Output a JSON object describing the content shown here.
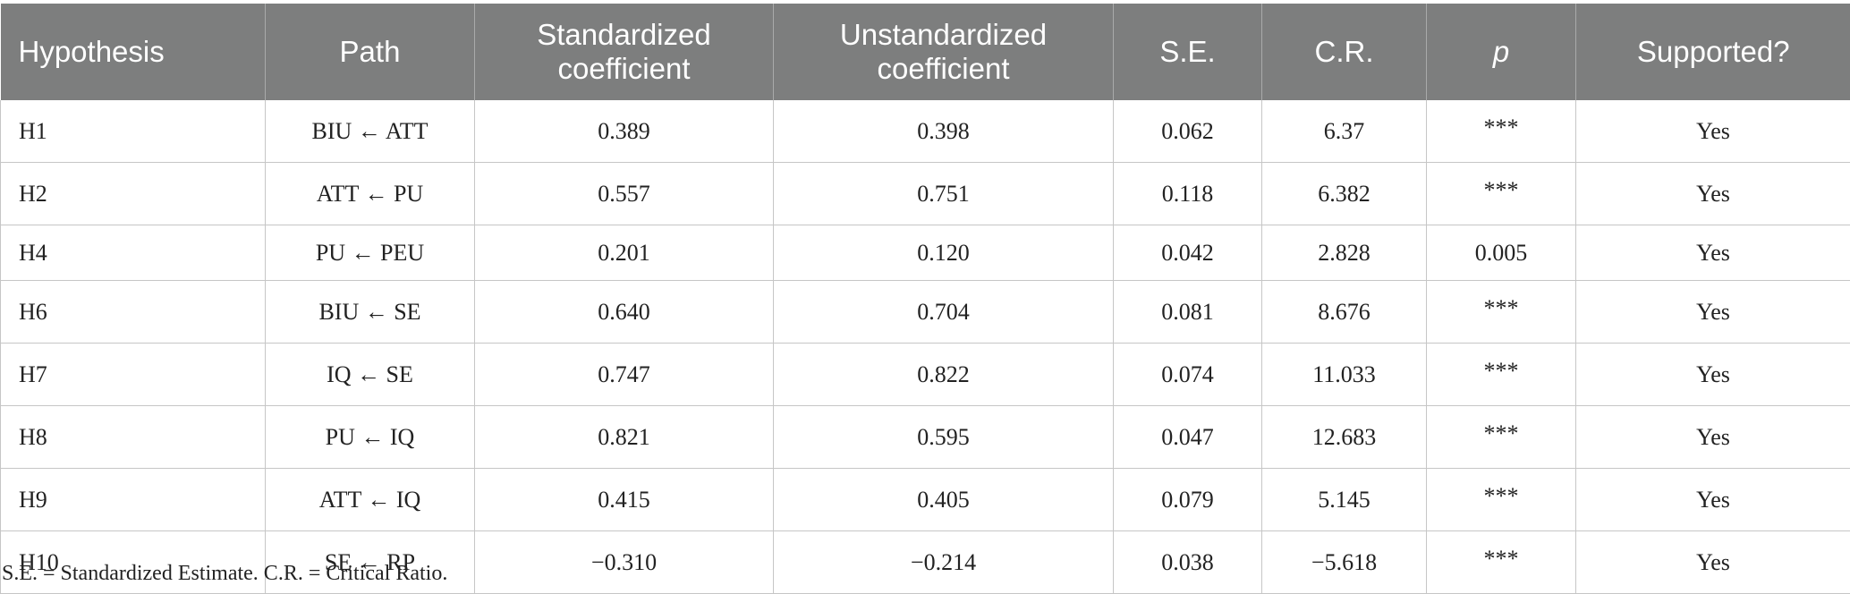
{
  "table": {
    "headers": {
      "hypothesis": "Hypothesis",
      "path": "Path",
      "std_line1": "Standardized",
      "std_line2": "coefficient",
      "unstd_line1": "Unstandardized",
      "unstd_line2": "coefficient",
      "se": "S.E.",
      "cr": "C.R.",
      "p": "p",
      "supported": "Supported?"
    },
    "rows": [
      {
        "hypothesis": "H1",
        "path": "BIU ← ATT",
        "std": "0.389",
        "unstd": "0.398",
        "se": "0.062",
        "cr": "6.37",
        "p": "***",
        "supported": "Yes"
      },
      {
        "hypothesis": "H2",
        "path": "ATT ← PU",
        "std": "0.557",
        "unstd": "0.751",
        "se": "0.118",
        "cr": "6.382",
        "p": "***",
        "supported": "Yes"
      },
      {
        "hypothesis": "H4",
        "path": "PU ← PEU",
        "std": "0.201",
        "unstd": "0.120",
        "se": "0.042",
        "cr": "2.828",
        "p": "0.005",
        "supported": "Yes"
      },
      {
        "hypothesis": "H6",
        "path": "BIU ← SE",
        "std": "0.640",
        "unstd": "0.704",
        "se": "0.081",
        "cr": "8.676",
        "p": "***",
        "supported": "Yes"
      },
      {
        "hypothesis": "H7",
        "path": "IQ ← SE",
        "std": "0.747",
        "unstd": "0.822",
        "se": "0.074",
        "cr": "11.033",
        "p": "***",
        "supported": "Yes"
      },
      {
        "hypothesis": "H8",
        "path": "PU ← IQ",
        "std": "0.821",
        "unstd": "0.595",
        "se": "0.047",
        "cr": "12.683",
        "p": "***",
        "supported": "Yes"
      },
      {
        "hypothesis": "H9",
        "path": "ATT ← IQ",
        "std": "0.415",
        "unstd": "0.405",
        "se": "0.079",
        "cr": "5.145",
        "p": "***",
        "supported": "Yes"
      },
      {
        "hypothesis": "H10",
        "path": "SE ← RP",
        "std": "−0.310",
        "unstd": "−0.214",
        "se": "0.038",
        "cr": "−5.618",
        "p": "***",
        "supported": "Yes"
      }
    ]
  },
  "footnote": "S.E. = Standardized Estimate. C.R. = Critical Ratio."
}
